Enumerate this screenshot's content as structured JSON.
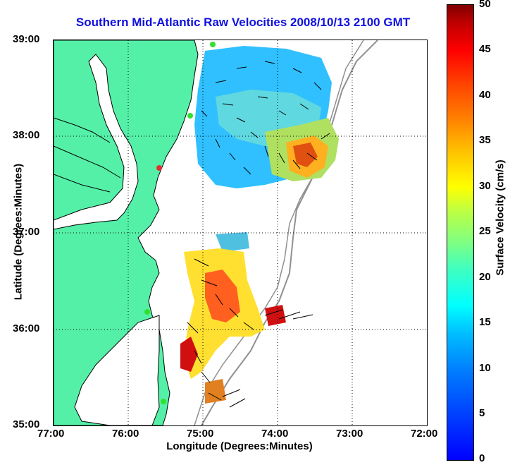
{
  "title": "Southern Mid-Atlantic Raw Velocities 2008/10/13 2100 GMT",
  "x_axis": {
    "label": "Longitude (Degrees:Minutes)",
    "ticks": [
      "77:00",
      "76:00",
      "75:00",
      "74:00",
      "73:00",
      "72:00"
    ]
  },
  "y_axis": {
    "label": "Latitude (Degrees:Minutes)",
    "ticks": [
      "39:00",
      "38:00",
      "37:00",
      "36:00",
      "35:00"
    ]
  },
  "colorbar": {
    "label": "Surface Velocity (cm/s)",
    "ticks": [
      "50",
      "45",
      "40",
      "35",
      "30",
      "25",
      "20",
      "15",
      "10",
      "5",
      "0"
    ],
    "min": 0,
    "max": 50
  },
  "colors": {
    "land": "#55f0a8",
    "coast_line": "#000000",
    "title": "#1010e0",
    "bathymetry": "#909090"
  }
}
